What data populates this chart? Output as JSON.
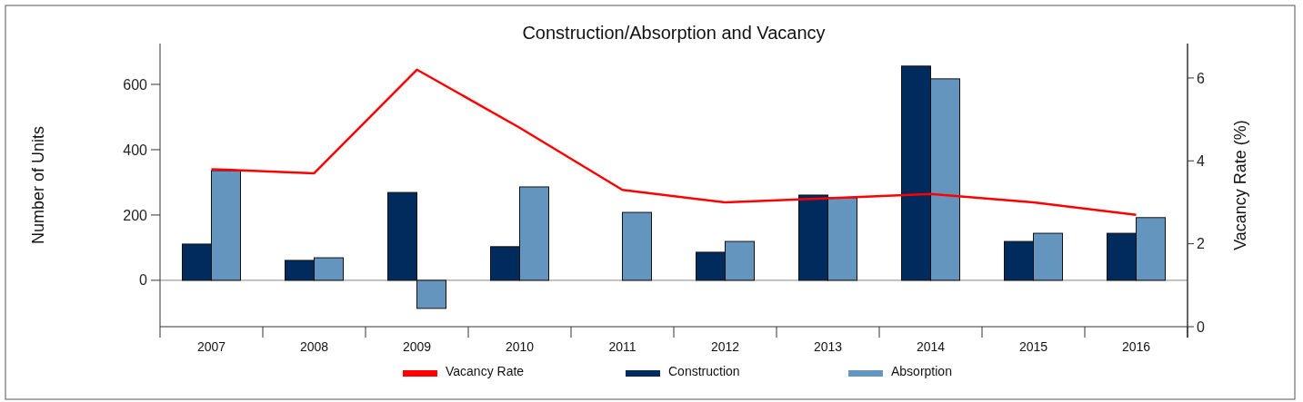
{
  "chart_data": {
    "type": "bar",
    "title": "Construction/Absorption and Vacancy",
    "ylabel": "Number of Units",
    "y2label": "Vacancy Rate (%)",
    "categories": [
      "2007",
      "2008",
      "2009",
      "2010",
      "2011",
      "2012",
      "2013",
      "2014",
      "2015",
      "2016"
    ],
    "series": [
      {
        "name": "Vacancy Rate",
        "type": "line",
        "axis": "y2",
        "color": "#ff0000",
        "values": [
          3.8,
          3.7,
          6.2,
          4.8,
          3.3,
          3.0,
          3.1,
          3.2,
          3.0,
          2.7
        ]
      },
      {
        "name": "Construction",
        "color": "#002b5c",
        "values": [
          111,
          61,
          269,
          103,
          null,
          86,
          261,
          656,
          119,
          144
        ]
      },
      {
        "name": "Absorption",
        "color": "#6495bf",
        "values": [
          336,
          69,
          -86,
          286,
          208,
          119,
          253,
          617,
          144,
          192
        ]
      }
    ],
    "ylim": [
      -142,
      725
    ],
    "yticks": [
      0,
      200,
      400,
      600
    ],
    "y2lim": [
      0,
      6.83
    ],
    "y2ticks": [
      0,
      2,
      4,
      6
    ],
    "ref_lines": [
      {
        "axis": "y",
        "value": 0,
        "color": "#888888"
      }
    ],
    "legend": "bottom"
  }
}
